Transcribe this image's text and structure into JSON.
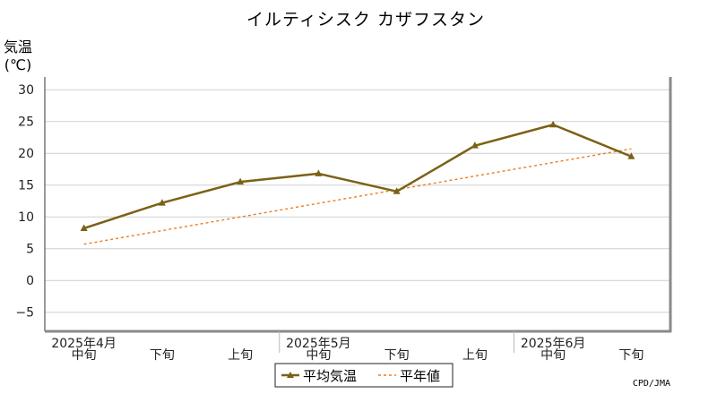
{
  "chart_data": {
    "type": "line",
    "title": "イルティシスク カザフスタン",
    "ylabel": "気温",
    "yunit": "(℃)",
    "ylim": [
      -8,
      32
    ],
    "yticks": [
      30,
      25,
      20,
      15,
      10,
      5,
      0,
      -5
    ],
    "ytick_labels": [
      "30",
      "25",
      "20",
      "15",
      "10",
      "5",
      "0",
      "−5"
    ],
    "categories": [
      "中旬",
      "下旬",
      "上旬",
      "中旬",
      "下旬",
      "上旬",
      "中旬",
      "下旬"
    ],
    "month_labels": [
      {
        "label": "2025年4月",
        "index": 0
      },
      {
        "label": "2025年5月",
        "index": 3
      },
      {
        "label": "2025年6月",
        "index": 6
      }
    ],
    "series": [
      {
        "name": "平均気温",
        "color": "#7b6116",
        "values": [
          8.2,
          12.2,
          15.5,
          16.8,
          14.0,
          21.2,
          24.5,
          19.5
        ]
      },
      {
        "name": "平年値",
        "color": "#f07c1e",
        "style": "dashed",
        "trend": [
          5.7,
          20.7
        ]
      }
    ],
    "grid": true,
    "legend_position": "bottom-center",
    "credit": "CPD/JMA"
  }
}
